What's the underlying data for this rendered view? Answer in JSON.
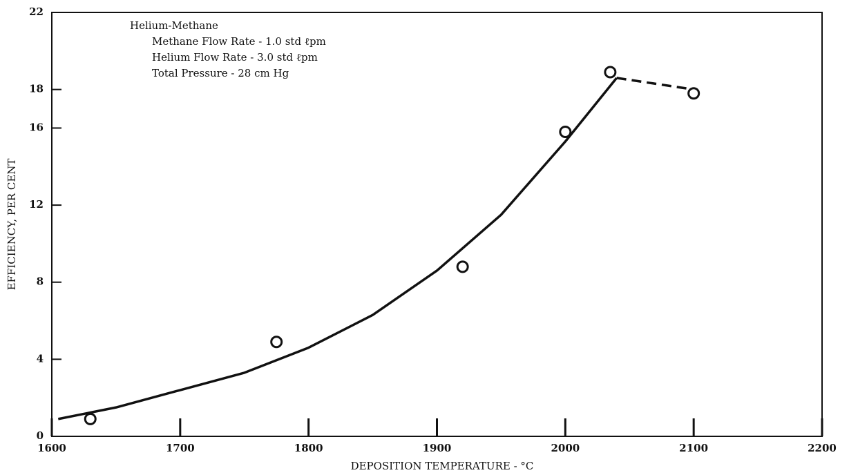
{
  "chart_data": {
    "type": "scatter",
    "xlabel": "DEPOSITION TEMPERATURE - °C",
    "ylabel": "EFFICIENCY, PER CENT",
    "annotations": [
      "Helium-Methane",
      "Methane Flow Rate - 1.0 std ℓpm",
      "Helium Flow Rate - 3.0 std ℓpm",
      "Total Pressure - 28 cm Hg"
    ],
    "x": [
      1630,
      1775,
      1920,
      2000,
      2035,
      2100
    ],
    "values": [
      0.9,
      4.9,
      8.8,
      15.8,
      18.9,
      17.8
    ],
    "curve": {
      "x": [
        1605,
        1650,
        1700,
        1750,
        1800,
        1850,
        1900,
        1950,
        2000,
        2040
      ],
      "values": [
        0.9,
        1.5,
        2.4,
        3.3,
        4.6,
        6.3,
        8.6,
        11.5,
        15.3,
        18.6
      ]
    },
    "dashed_curve": {
      "x": [
        2040,
        2100
      ],
      "values": [
        18.6,
        18.0
      ]
    },
    "xlim": [
      1600,
      2200
    ],
    "xticks": [
      1600,
      1700,
      1800,
      1900,
      2000,
      2100,
      2200
    ],
    "ylim": [
      0,
      22
    ],
    "yticks": [
      0,
      4,
      8,
      12,
      16,
      18,
      22
    ]
  }
}
